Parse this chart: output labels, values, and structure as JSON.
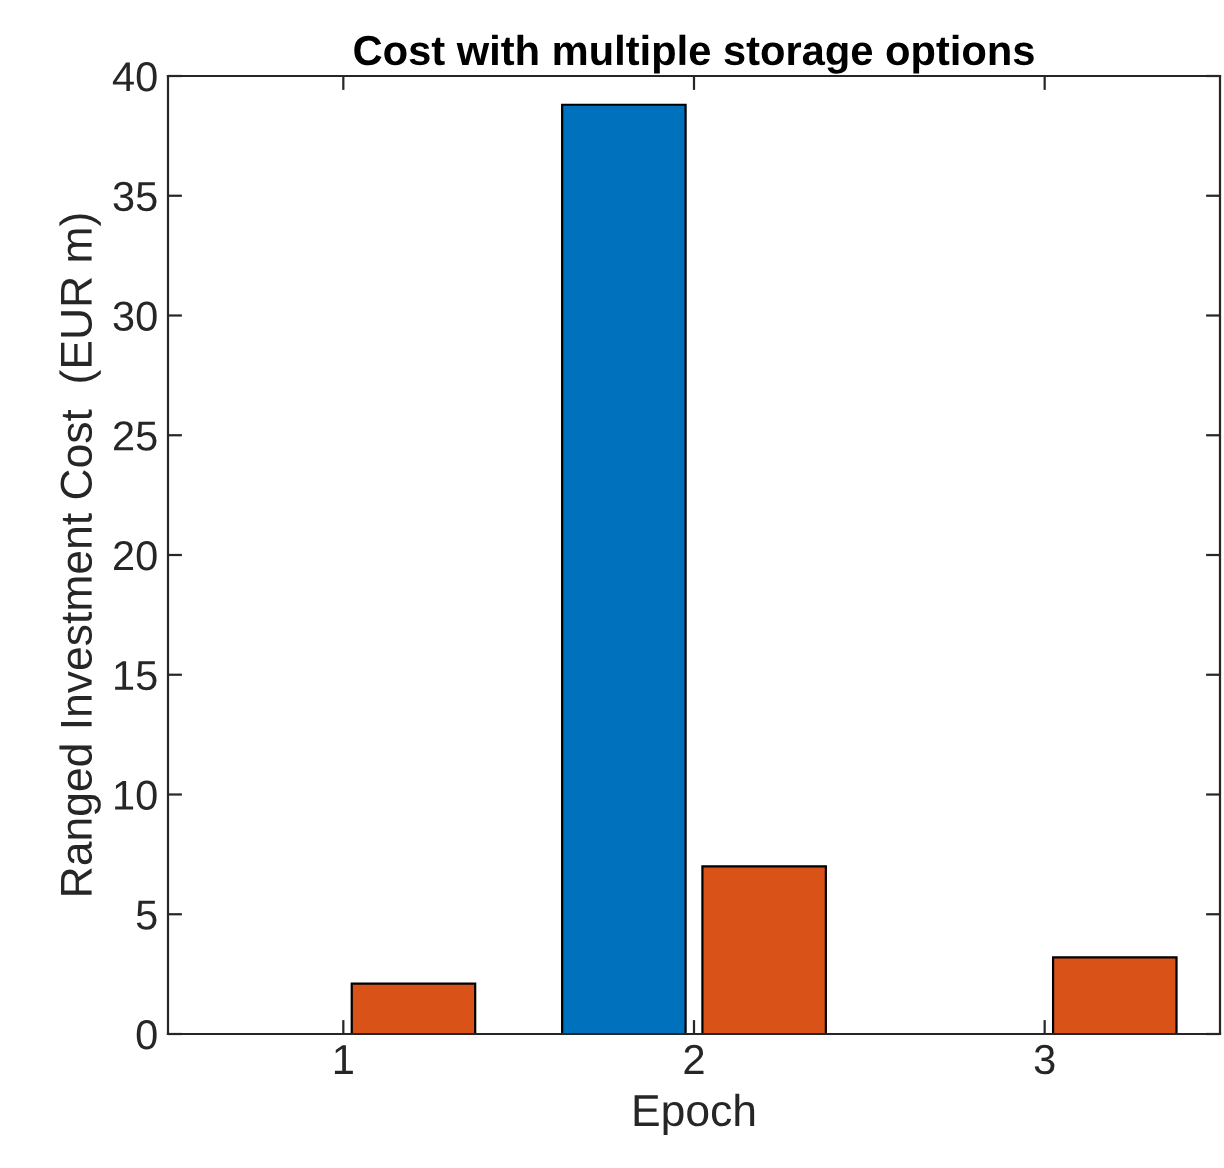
{
  "chart_data": {
    "type": "bar",
    "title": "Cost with multiple storage options",
    "xlabel": "Epoch",
    "ylabel": "Ranged Investment Cost  (EUR m)",
    "categories": [
      "1",
      "2",
      "3"
    ],
    "series": [
      {
        "color": "#0072bd",
        "values": [
          0,
          38.8,
          0
        ]
      },
      {
        "color": "#d95319",
        "values": [
          2.1,
          7.0,
          3.2
        ]
      }
    ],
    "ylim": [
      0,
      40
    ],
    "yticks": [
      0,
      5,
      10,
      15,
      20,
      25,
      30,
      35,
      40
    ],
    "grid": false,
    "legend": false
  }
}
